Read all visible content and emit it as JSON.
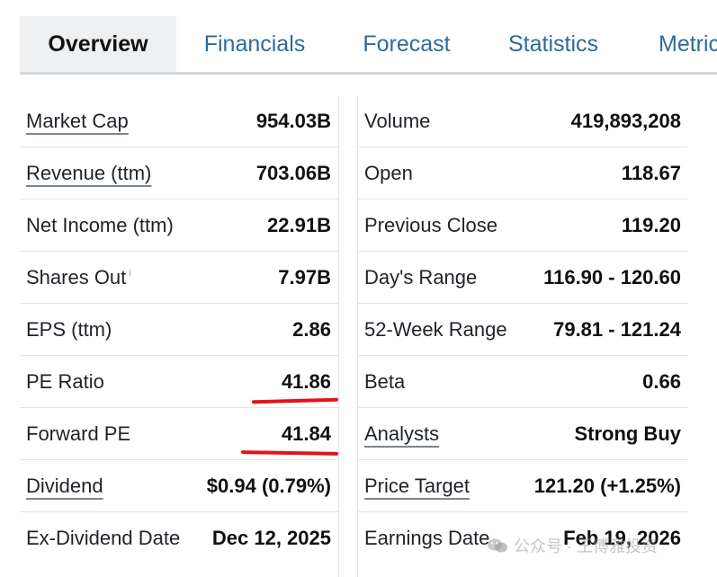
{
  "tabs": [
    "Overview",
    "Financials",
    "Forecast",
    "Statistics",
    "Metric"
  ],
  "left_rows": [
    {
      "label": "Market Cap",
      "value": "954.03B"
    },
    {
      "label": "Revenue (ttm)",
      "value": "703.06B"
    },
    {
      "label": "Net Income (ttm)",
      "value": "22.91B"
    },
    {
      "label": "Shares Out",
      "sup": "i",
      "value": "7.97B"
    },
    {
      "label": "EPS (ttm)",
      "value": "2.86"
    },
    {
      "label": "PE Ratio",
      "value": "41.86"
    },
    {
      "label": "Forward PE",
      "value": "41.84"
    },
    {
      "label": "Dividend",
      "value": "$0.94 (0.79%)"
    },
    {
      "label": "Ex-Dividend Date",
      "value": "Dec 12, 2025"
    }
  ],
  "right_rows": [
    {
      "label": "Volume",
      "value": "419,893,208"
    },
    {
      "label": "Open",
      "value": "118.67"
    },
    {
      "label": "Previous Close",
      "value": "119.20"
    },
    {
      "label": "Day's Range",
      "value": "116.90 - 120.60"
    },
    {
      "label": "52-Week Range",
      "value": "79.81 - 121.24"
    },
    {
      "label": "Beta",
      "value": "0.66"
    },
    {
      "label": "Analysts",
      "value": "Strong Buy"
    },
    {
      "label": "Price Target",
      "value": "121.20 (+1.25%)"
    },
    {
      "label": "Earnings Date",
      "value": "Feb 19, 2026"
    }
  ],
  "watermark": "公众号 · 王博雅投资",
  "colors": {
    "tab_link": "#2e6b9e",
    "highlight": "#e0141b"
  }
}
